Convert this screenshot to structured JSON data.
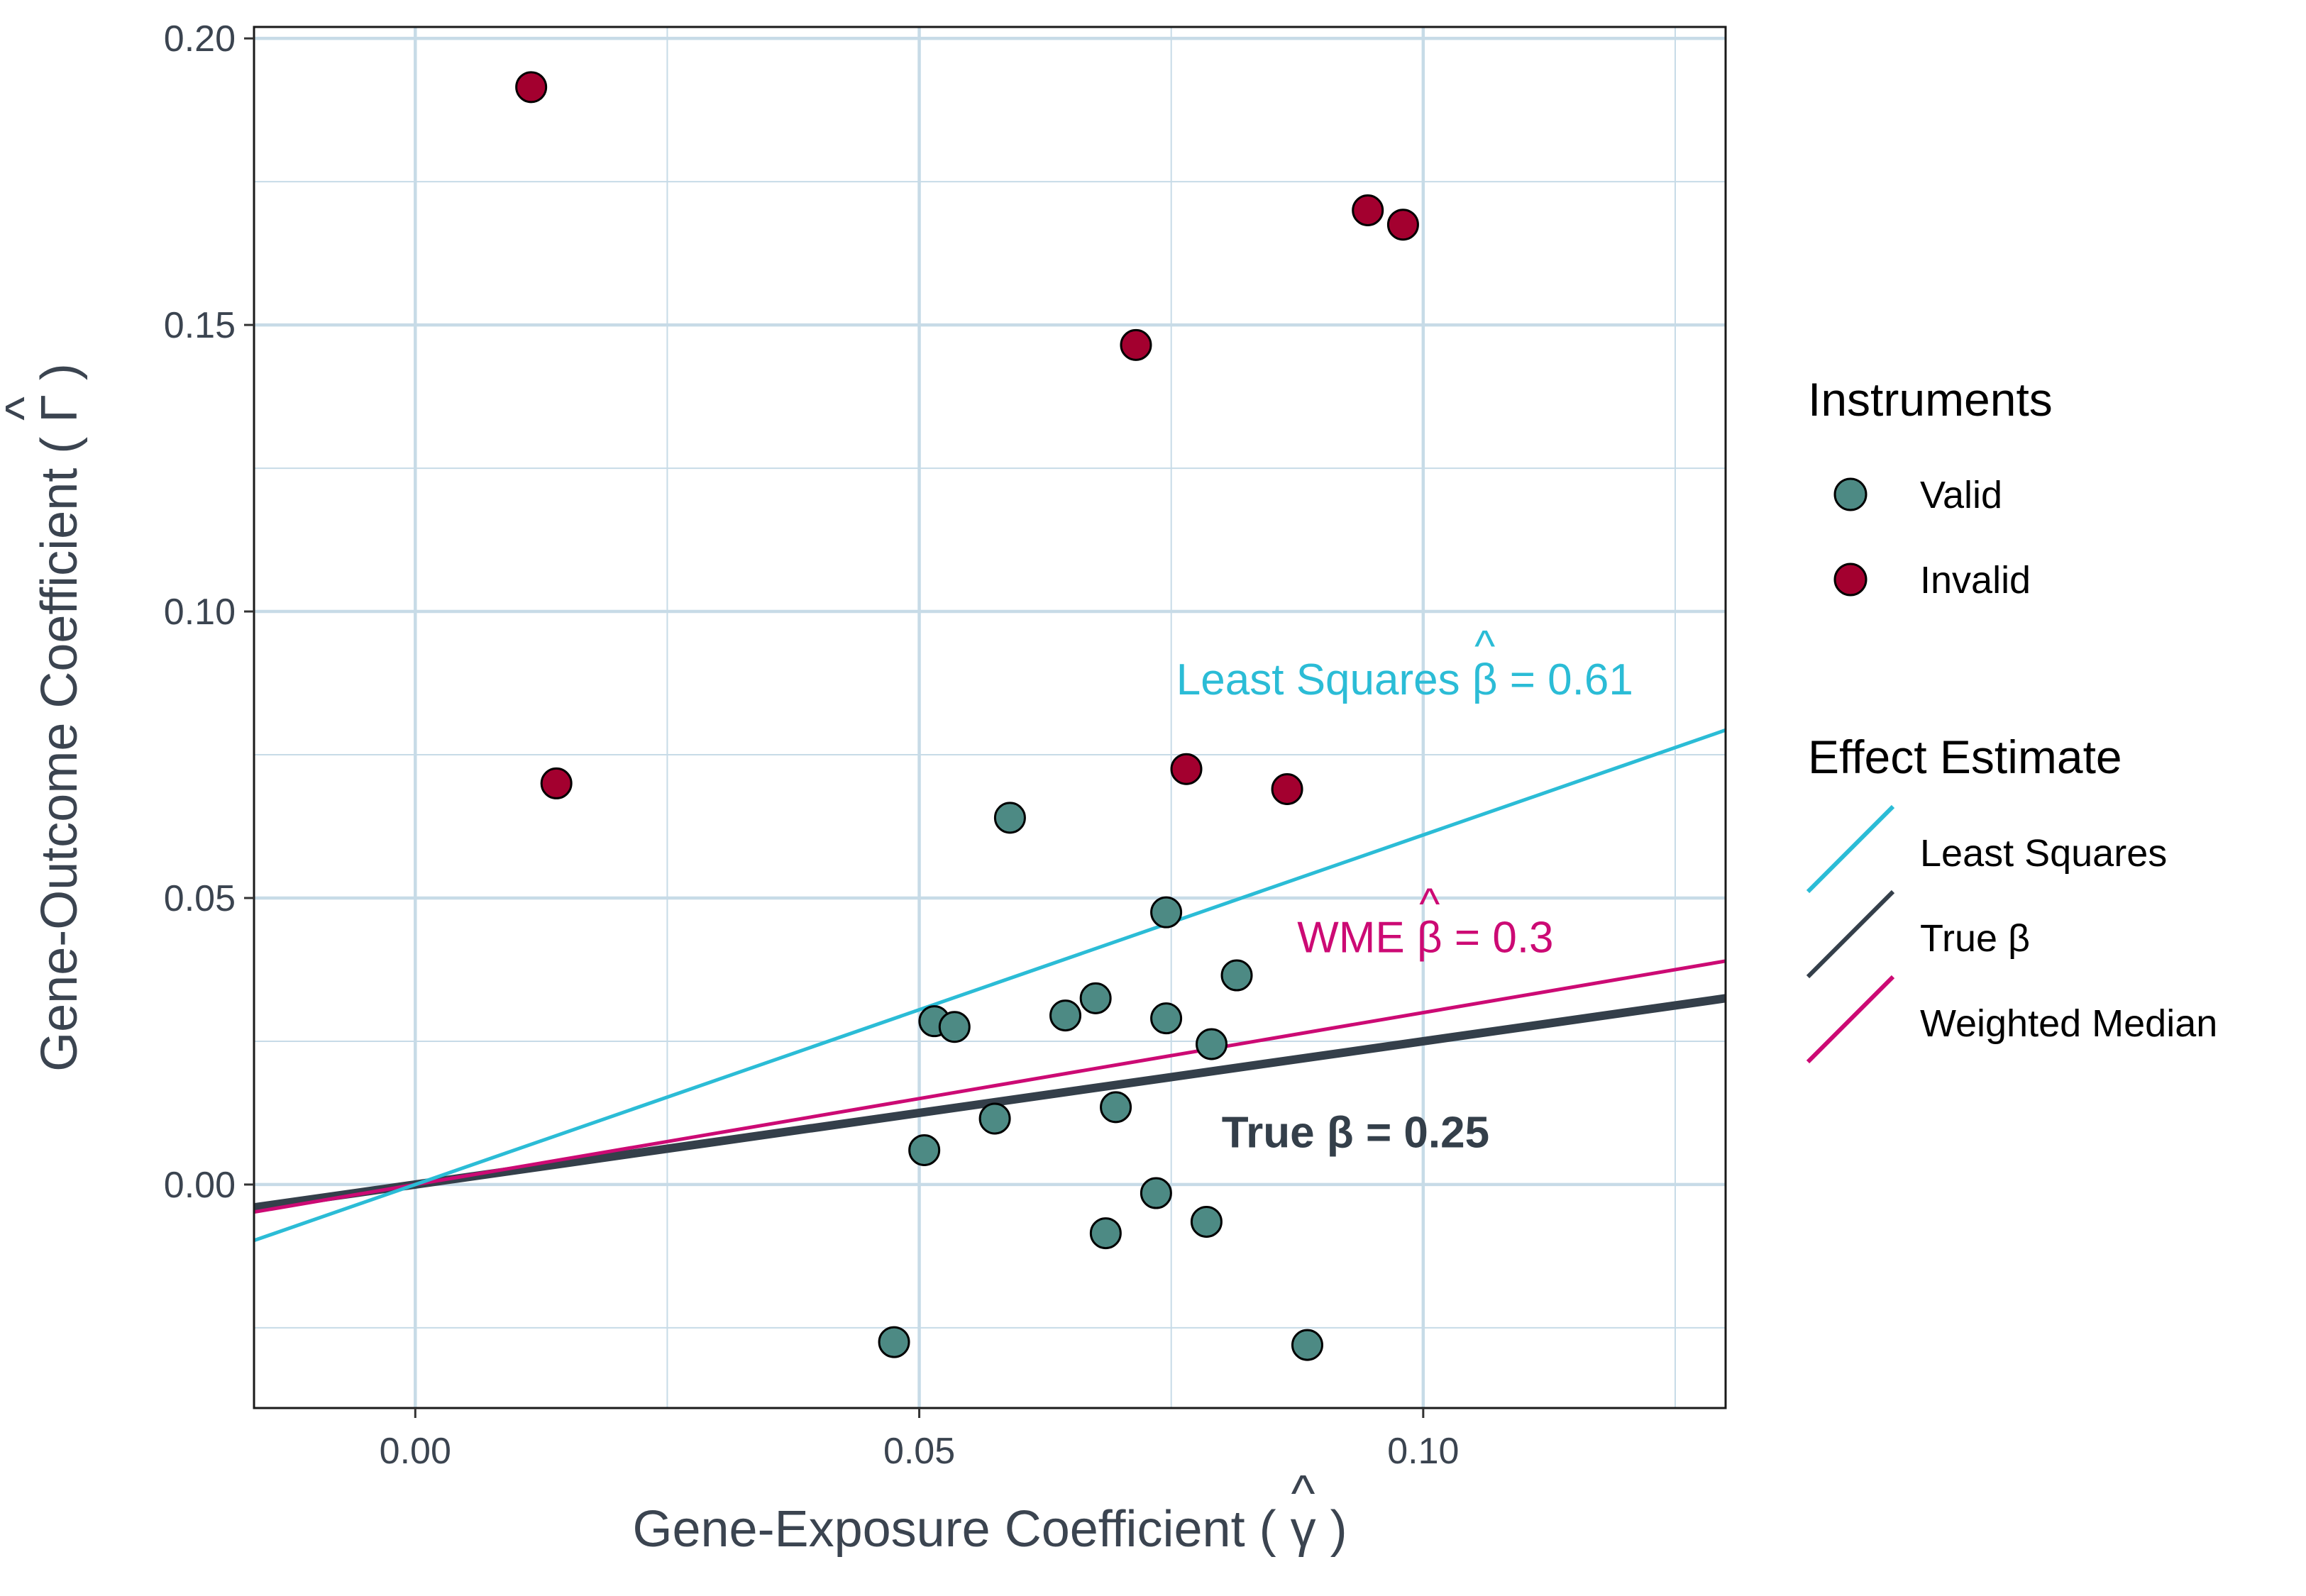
{
  "chart_data": {
    "type": "scatter",
    "xlabel": "Gene-Exposure Coefficient ( γ )",
    "ylabel": "Gene-Outcome Coefficient ( Γ )",
    "xlim": [
      -0.016,
      0.13
    ],
    "ylim": [
      -0.039,
      0.202
    ],
    "x_ticks": [
      0.0,
      0.05,
      0.1
    ],
    "x_tick_labels": [
      "0.00",
      "0.05",
      "0.10"
    ],
    "y_ticks": [
      0.0,
      0.05,
      0.1,
      0.15,
      0.2
    ],
    "y_tick_labels": [
      "0.00",
      "0.05",
      "0.10",
      "0.15",
      "0.20"
    ],
    "grid": true,
    "legend_position": "right",
    "series": [
      {
        "name": "Valid",
        "color": "#4d8a84",
        "points": [
          {
            "x": 0.059,
            "y": 0.064
          },
          {
            "x": 0.0745,
            "y": 0.0475
          },
          {
            "x": 0.0815,
            "y": 0.0365
          },
          {
            "x": 0.0675,
            "y": 0.0325
          },
          {
            "x": 0.0645,
            "y": 0.0295
          },
          {
            "x": 0.0745,
            "y": 0.029
          },
          {
            "x": 0.0515,
            "y": 0.0285
          },
          {
            "x": 0.0535,
            "y": 0.0275
          },
          {
            "x": 0.079,
            "y": 0.0245
          },
          {
            "x": 0.0695,
            "y": 0.0135
          },
          {
            "x": 0.0575,
            "y": 0.0115
          },
          {
            "x": 0.0505,
            "y": 0.006
          },
          {
            "x": 0.0735,
            "y": -0.0015
          },
          {
            "x": 0.0785,
            "y": -0.0065
          },
          {
            "x": 0.0685,
            "y": -0.0085
          },
          {
            "x": 0.0475,
            "y": -0.0275
          },
          {
            "x": 0.0885,
            "y": -0.028
          }
        ]
      },
      {
        "name": "Invalid",
        "color": "#a3002f",
        "points": [
          {
            "x": 0.0115,
            "y": 0.1915
          },
          {
            "x": 0.0945,
            "y": 0.17
          },
          {
            "x": 0.098,
            "y": 0.1675
          },
          {
            "x": 0.0715,
            "y": 0.1465
          },
          {
            "x": 0.014,
            "y": 0.07
          },
          {
            "x": 0.0765,
            "y": 0.0725
          },
          {
            "x": 0.0865,
            "y": 0.069
          }
        ]
      }
    ],
    "lines": [
      {
        "name": "Least Squares",
        "slope": 0.61,
        "color": "#2bbcd6",
        "width": 5,
        "annotation": "Least Squares β = 0.61",
        "annot_pre": "Least Squares ",
        "annot_post": " = 0.61",
        "annot_x": 0.0755,
        "annot_y": 0.0855,
        "bold": false
      },
      {
        "name": "True β",
        "slope": 0.25,
        "color": "#343f4a",
        "width": 12,
        "annotation": "True β = 0.25",
        "annot_pre": "True β = 0.25",
        "annot_post": "",
        "annot_x": 0.08,
        "annot_y": 0.0065,
        "bold": true
      },
      {
        "name": "Weighted Median",
        "slope": 0.3,
        "color": "#cc0a74",
        "width": 5,
        "annotation": "WME β = 0.3",
        "annot_pre": "WME ",
        "annot_post": " = 0.3",
        "annot_x": 0.0875,
        "annot_y": 0.0405,
        "bold": false
      }
    ],
    "legends": {
      "instruments": {
        "title": "Instruments",
        "items": [
          "Valid",
          "Invalid"
        ]
      },
      "effect": {
        "title": "Effect Estimate",
        "items": [
          "Least Squares",
          "True β",
          "Weighted Median"
        ]
      }
    },
    "colors": {
      "grid": "#c7dbe7",
      "panel_border": "#1a1a1a",
      "text": "#3b4450"
    }
  }
}
